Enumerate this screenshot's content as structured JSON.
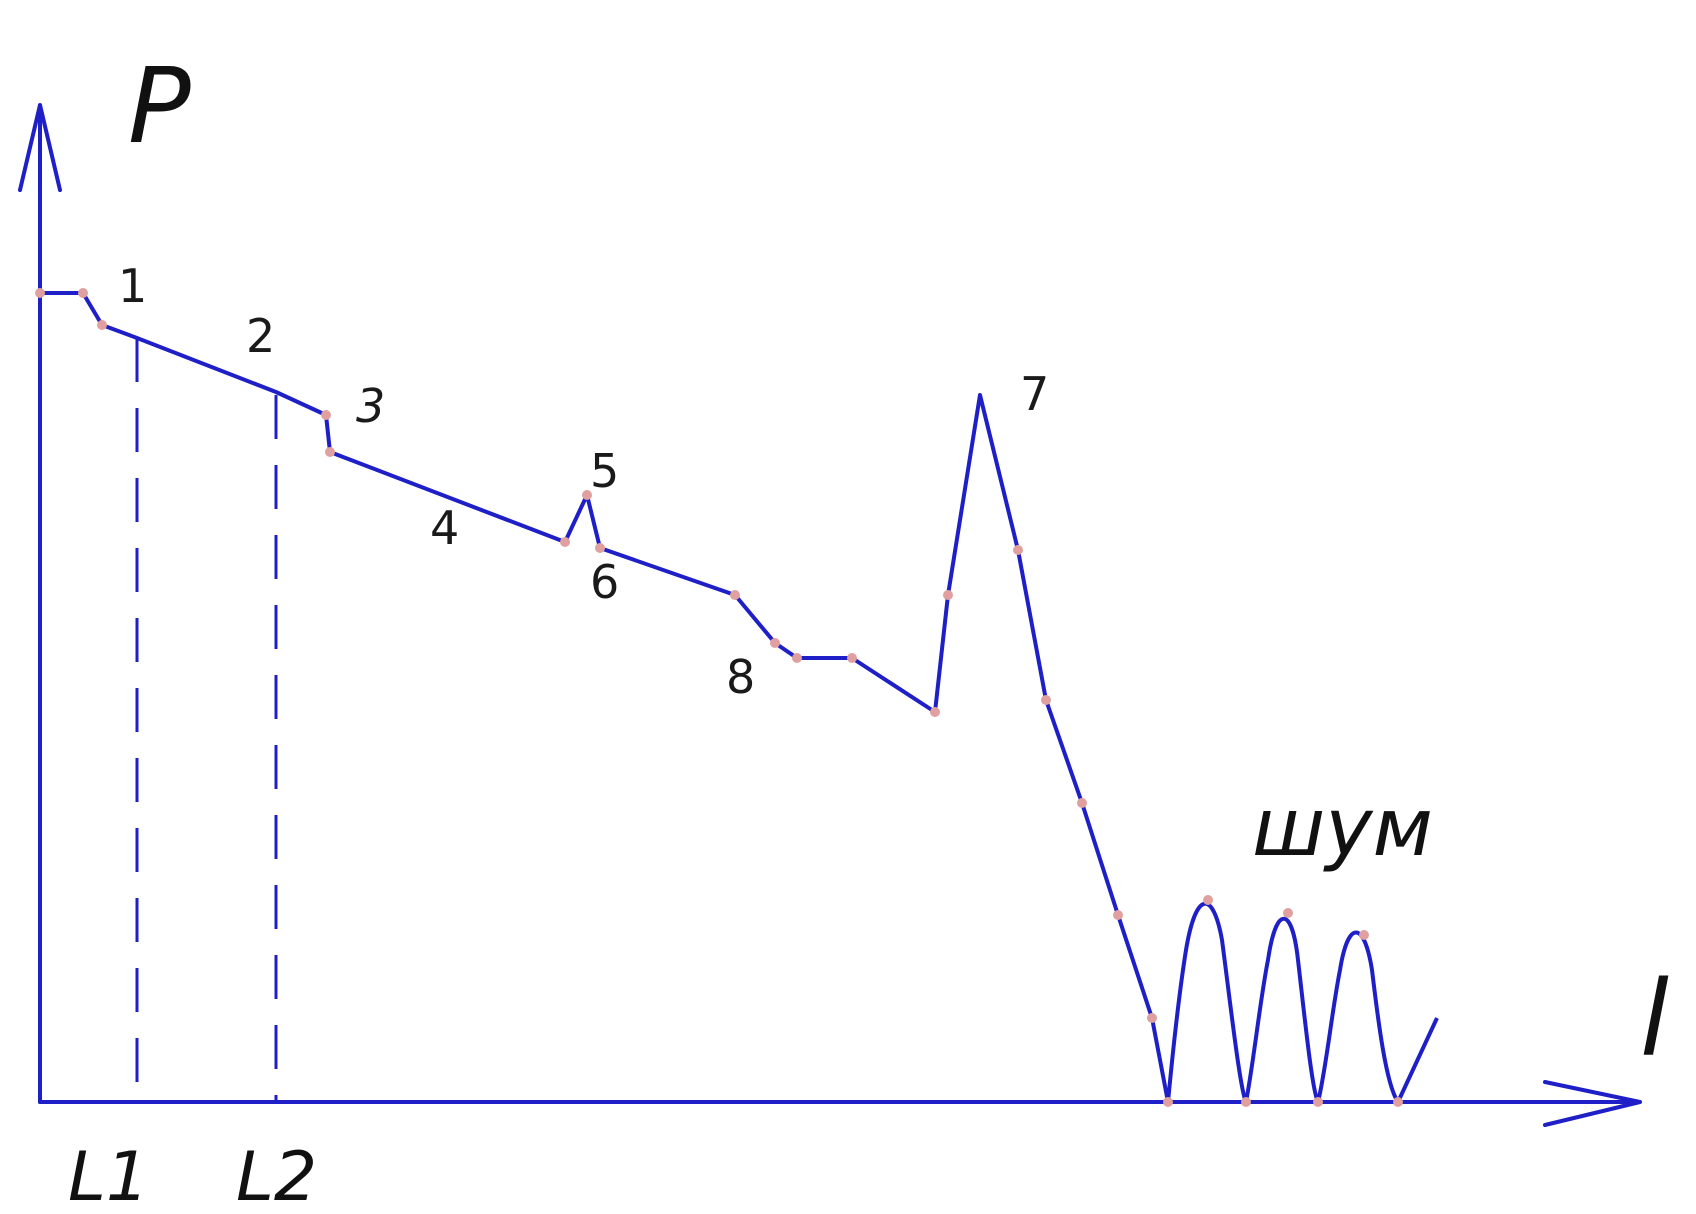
{
  "axes": {
    "y_label": "P",
    "x_label": "l",
    "markers": [
      "L1",
      "L2"
    ]
  },
  "point_labels": [
    "1",
    "2",
    "3",
    "4",
    "5",
    "6",
    "7",
    "8"
  ],
  "noise_label": "шум",
  "colors": {
    "line": "#1f1fc8",
    "point": "#e0a0a0",
    "text": "#1a1a1a"
  }
}
